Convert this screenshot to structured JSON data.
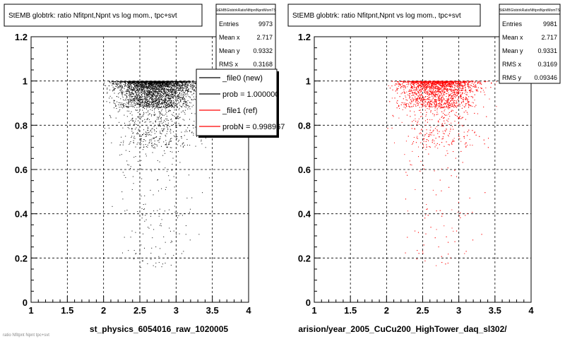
{
  "chart_data": [
    {
      "type": "scatter",
      "title": "StEMB globtrk: ratio Nfitpnt,Npnt vs log mom., tpc+svt",
      "xlabel": "st_physics_6054016_raw_1020005",
      "ylabel": "",
      "xlim": [
        1,
        4
      ],
      "ylim": [
        0,
        1.2
      ],
      "xticks": [
        "1",
        "1.5",
        "2",
        "2.5",
        "3",
        "3.5",
        "4"
      ],
      "yticks": [
        "0",
        "0.2",
        "0.4",
        "0.6",
        "0.8",
        "1",
        "1.2"
      ],
      "grid": true,
      "marker_color": "#000000",
      "x_range": [
        2.0,
        3.6
      ],
      "y_range": [
        0.1,
        1.0
      ],
      "stats": {
        "header": "StEMBGlobtrkRatioNfitpntNpntMomTS",
        "rows": [
          {
            "label": "Entries",
            "value": "9973"
          },
          {
            "label": "Mean x",
            "value": "2.717"
          },
          {
            "label": "Mean y",
            "value": "0.9332"
          },
          {
            "label": "RMS x",
            "value": "0.3168"
          }
        ]
      },
      "legend": {
        "placement": "top-right",
        "entries": [
          {
            "label": "_file0 (new)",
            "color": "#000000"
          },
          {
            "label": "prob = 1.000000",
            "color": "#000000"
          },
          {
            "label": "_file1 (ref)",
            "color": "#ff0000"
          },
          {
            "label": "probN = 0.998967",
            "color": "#ff0000"
          }
        ]
      }
    },
    {
      "type": "scatter",
      "title": "StEMB globtrk: ratio Nfitpnt,Npnt vs log mom., tpc+svt",
      "xlabel": "arision/year_2005_CuCu200_HighTower_daq_sl302/",
      "ylabel": "",
      "xlim": [
        1,
        4
      ],
      "ylim": [
        0,
        1.2
      ],
      "xticks": [
        "1",
        "1.5",
        "2",
        "2.5",
        "3",
        "3.5",
        "4"
      ],
      "yticks": [
        "0",
        "0.2",
        "0.4",
        "0.6",
        "0.8",
        "1",
        "1.2"
      ],
      "grid": true,
      "marker_color": "#ff0000",
      "x_range": [
        2.0,
        4.0
      ],
      "y_range": [
        0.1,
        1.0
      ],
      "stats": {
        "header": "StEMBGlobtrkRatioNfitpntNpntMomTS",
        "rows": [
          {
            "label": "Entries",
            "value": "9981"
          },
          {
            "label": "Mean x",
            "value": "2.717"
          },
          {
            "label": "Mean y",
            "value": "0.9331"
          },
          {
            "label": "RMS x",
            "value": "0.3169"
          },
          {
            "label": "RMS y",
            "value": "0.09346"
          }
        ]
      }
    }
  ],
  "footer": "ratio Nfitpnt Npnt tpc+svt"
}
